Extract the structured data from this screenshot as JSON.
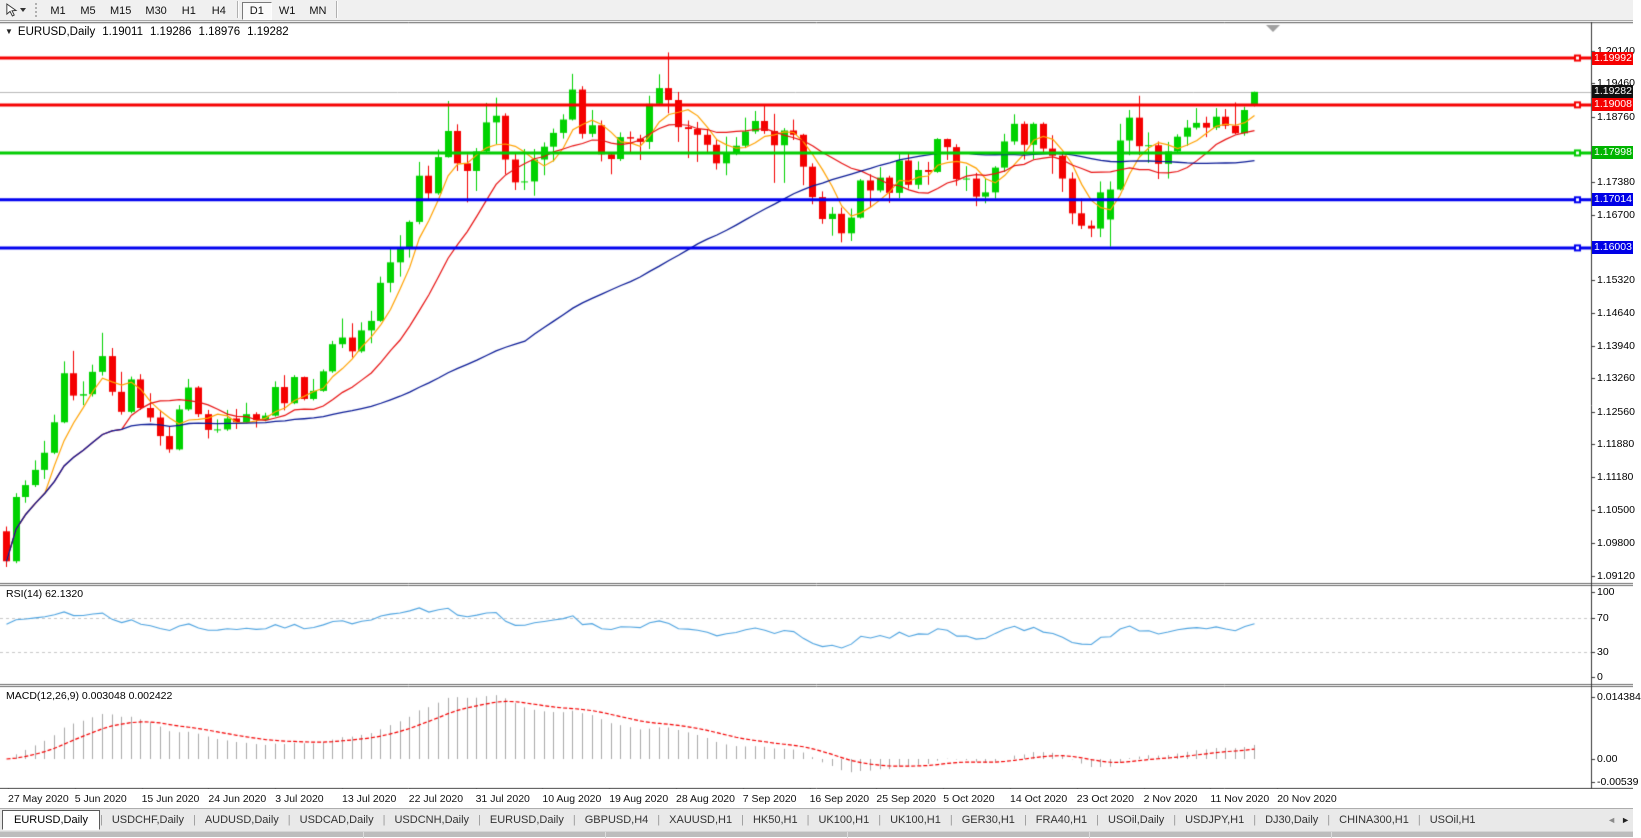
{
  "toolbar": {
    "timeframes": [
      "M1",
      "M5",
      "M15",
      "M30",
      "H1",
      "H4",
      "D1",
      "W1",
      "MN"
    ],
    "active_timeframe": "D1"
  },
  "icons": {
    "chart_dropdown": "▼",
    "tab_scroll_left": "◄",
    "tab_scroll_right": "►"
  },
  "tabs": {
    "active_index": 0,
    "items": [
      "EURUSD,Daily",
      "USDCHF,Daily",
      "AUDUSD,Daily",
      "USDCAD,Daily",
      "USDCNH,Daily",
      "EURUSD,Daily",
      "GBPUSD,H4",
      "XAUUSD,H1",
      "HK50,H1",
      "UK100,H1",
      "UK100,H1",
      "GER30,H1",
      "FRA40,H1",
      "USOil,Daily",
      "USDJPY,H1",
      "DJ30,Daily",
      "CHINA300,H1",
      "USOil,H1"
    ]
  },
  "chart_data": {
    "type": "candlestick",
    "title": "EURUSD,Daily",
    "ohlc_display": {
      "open": "1.19011",
      "high": "1.19286",
      "low": "1.18976",
      "close": "1.19282"
    },
    "current_price": {
      "value": 1.19282,
      "label": "1.19282"
    },
    "ylim": [
      1.08964,
      1.20707
    ],
    "colors": {
      "bull": "#00d200",
      "bear": "#f40000",
      "ma_fast": "#ffa200",
      "ma_mid": "#e81010",
      "ma_slow": "#0a1a96",
      "price_line": "#b8b8b8"
    },
    "moving_averages": [
      {
        "name": "fast",
        "period": 5,
        "color": "#ffa200"
      },
      {
        "name": "mid",
        "period": 13,
        "color": "#e81010"
      },
      {
        "name": "slow",
        "period": 55,
        "color": "#0a1a96"
      }
    ],
    "hlines": [
      {
        "price": 1.19992,
        "color": "#f60000",
        "width": 3
      },
      {
        "price": 1.19008,
        "color": "#f60000",
        "width": 3
      },
      {
        "price": 1.17998,
        "color": "#00cc00",
        "width": 3
      },
      {
        "price": 1.17014,
        "color": "#0000f0",
        "width": 3
      },
      {
        "price": 1.16003,
        "color": "#0000f0",
        "width": 3
      }
    ],
    "axis_badges": [
      {
        "label": "1.19992",
        "value": 1.19992,
        "color": "#f60000"
      },
      {
        "label": "1.19282",
        "value": 1.19282,
        "color": "#101010"
      },
      {
        "label": "1.19008",
        "value": 1.19008,
        "color": "#f60000"
      },
      {
        "label": "1.17998",
        "value": 1.17998,
        "color": "#00b400"
      },
      {
        "label": "1.17014",
        "value": 1.17014,
        "color": "#0000e6"
      },
      {
        "label": "1.16003",
        "value": 1.16003,
        "color": "#0000e6"
      }
    ],
    "price_ticks": [
      "1.20140",
      "1.19460",
      "1.18760",
      "1.17380",
      "1.16700",
      "1.15320",
      "1.14640",
      "1.13940",
      "1.13260",
      "1.12560",
      "1.11880",
      "1.11180",
      "1.10500",
      "1.09800",
      "1.09120"
    ],
    "time_labels": [
      "27 May 2020",
      "5 Jun 2020",
      "15 Jun 2020",
      "24 Jun 2020",
      "3 Jul 2020",
      "13 Jul 2020",
      "22 Jul 2020",
      "31 Jul 2020",
      "10 Aug 2020",
      "19 Aug 2020",
      "28 Aug 2020",
      "7 Sep 2020",
      "16 Sep 2020",
      "25 Sep 2020",
      "5 Oct 2020",
      "14 Oct 2020",
      "23 Oct 2020",
      "2 Nov 2020",
      "11 Nov 2020",
      "20 Nov 2020"
    ],
    "indicators": [
      {
        "name": "RSI",
        "params": "14",
        "label": "RSI(14) 62.1320",
        "value": 62.132,
        "color": "#4da3e0",
        "levels": [
          {
            "label": "100",
            "v": 100
          },
          {
            "label": "70",
            "v": 70,
            "dashed": true
          },
          {
            "label": "30",
            "v": 30,
            "dashed": true
          },
          {
            "label": "0",
            "v": 0
          }
        ]
      },
      {
        "name": "MACD",
        "params": "12,26,9",
        "label": "MACD(12,26,9) 0.003048 0.002422",
        "values": [
          0.003048,
          0.002422
        ],
        "histogram_color": "#a9a9a9",
        "signal_color": "#f40000",
        "ticks": [
          {
            "label": "0.014384",
            "v": 0.014384
          },
          {
            "label": "0.00",
            "v": 0
          },
          {
            "label": "-0.00539",
            "v": -0.00539
          }
        ]
      }
    ],
    "candles": [
      [
        1.1005,
        1.1015,
        1.093,
        1.0942
      ],
      [
        1.0942,
        1.1085,
        1.0938,
        1.1077
      ],
      [
        1.1077,
        1.1112,
        1.1065,
        1.1102
      ],
      [
        1.1102,
        1.1154,
        1.1098,
        1.1134
      ],
      [
        1.1134,
        1.1195,
        1.1115,
        1.117
      ],
      [
        1.117,
        1.125,
        1.1167,
        1.1234
      ],
      [
        1.1234,
        1.1362,
        1.1232,
        1.1337
      ],
      [
        1.1337,
        1.1384,
        1.128,
        1.129
      ],
      [
        1.129,
        1.132,
        1.127,
        1.1293
      ],
      [
        1.1293,
        1.1355,
        1.1288,
        1.134
      ],
      [
        1.134,
        1.1422,
        1.1332,
        1.1373
      ],
      [
        1.1373,
        1.139,
        1.129,
        1.1298
      ],
      [
        1.1298,
        1.134,
        1.125,
        1.1256
      ],
      [
        1.1256,
        1.133,
        1.1253,
        1.1324
      ],
      [
        1.1324,
        1.1335,
        1.126,
        1.1264
      ],
      [
        1.1264,
        1.1295,
        1.1235,
        1.1244
      ],
      [
        1.1244,
        1.126,
        1.1185,
        1.1205
      ],
      [
        1.1205,
        1.1225,
        1.117,
        1.1177
      ],
      [
        1.1177,
        1.127,
        1.1175,
        1.1261
      ],
      [
        1.1261,
        1.1325,
        1.1258,
        1.1307
      ],
      [
        1.1307,
        1.131,
        1.1245,
        1.1251
      ],
      [
        1.1251,
        1.126,
        1.12,
        1.1218
      ],
      [
        1.1218,
        1.124,
        1.1212,
        1.1219
      ],
      [
        1.1219,
        1.126,
        1.1216,
        1.1242
      ],
      [
        1.1242,
        1.1262,
        1.122,
        1.1234
      ],
      [
        1.1234,
        1.1275,
        1.1232,
        1.1251
      ],
      [
        1.1251,
        1.1255,
        1.1223,
        1.1239
      ],
      [
        1.1239,
        1.1254,
        1.1236,
        1.1248
      ],
      [
        1.1248,
        1.132,
        1.1246,
        1.1308
      ],
      [
        1.1308,
        1.1333,
        1.1259,
        1.1274
      ],
      [
        1.1274,
        1.1333,
        1.1272,
        1.1329
      ],
      [
        1.1329,
        1.133,
        1.128,
        1.1283
      ],
      [
        1.1283,
        1.1325,
        1.128,
        1.13
      ],
      [
        1.13,
        1.1345,
        1.1298,
        1.1341
      ],
      [
        1.1341,
        1.1405,
        1.1338,
        1.1398
      ],
      [
        1.1398,
        1.1452,
        1.139,
        1.1412
      ],
      [
        1.1412,
        1.1442,
        1.137,
        1.1383
      ],
      [
        1.1383,
        1.1444,
        1.138,
        1.1427
      ],
      [
        1.1427,
        1.1468,
        1.14,
        1.1447
      ],
      [
        1.1447,
        1.154,
        1.1445,
        1.1527
      ],
      [
        1.1527,
        1.1601,
        1.1507,
        1.157
      ],
      [
        1.157,
        1.1627,
        1.154,
        1.1598
      ],
      [
        1.1598,
        1.1658,
        1.158,
        1.1655
      ],
      [
        1.1655,
        1.1781,
        1.165,
        1.1752
      ],
      [
        1.1752,
        1.1773,
        1.17,
        1.1715
      ],
      [
        1.1715,
        1.1807,
        1.1712,
        1.1791
      ],
      [
        1.1791,
        1.1909,
        1.179,
        1.1846
      ],
      [
        1.1846,
        1.186,
        1.1762,
        1.1778
      ],
      [
        1.1778,
        1.1797,
        1.1696,
        1.1762
      ],
      [
        1.1762,
        1.181,
        1.172,
        1.1803
      ],
      [
        1.1803,
        1.1905,
        1.18,
        1.1864
      ],
      [
        1.1864,
        1.1916,
        1.1818,
        1.1878
      ],
      [
        1.1878,
        1.1883,
        1.1755,
        1.1786
      ],
      [
        1.1786,
        1.18,
        1.1722,
        1.1738
      ],
      [
        1.1738,
        1.1808,
        1.1722,
        1.174
      ],
      [
        1.174,
        1.1808,
        1.171,
        1.1786
      ],
      [
        1.1786,
        1.1822,
        1.1753,
        1.1813
      ],
      [
        1.1813,
        1.1851,
        1.1782,
        1.1842
      ],
      [
        1.1842,
        1.1881,
        1.183,
        1.187
      ],
      [
        1.187,
        1.1966,
        1.1868,
        1.1933
      ],
      [
        1.1933,
        1.194,
        1.183,
        1.184
      ],
      [
        1.184,
        1.189,
        1.1833,
        1.1858
      ],
      [
        1.1858,
        1.1868,
        1.1782,
        1.1797
      ],
      [
        1.1797,
        1.1801,
        1.1755,
        1.1787
      ],
      [
        1.1787,
        1.1843,
        1.1783,
        1.1833
      ],
      [
        1.1833,
        1.1845,
        1.18,
        1.183
      ],
      [
        1.183,
        1.1838,
        1.1785,
        1.1823
      ],
      [
        1.1823,
        1.192,
        1.1808,
        1.1903
      ],
      [
        1.1903,
        1.1965,
        1.19,
        1.1936
      ],
      [
        1.1936,
        1.2011,
        1.1883,
        1.1911
      ],
      [
        1.1911,
        1.1928,
        1.1823,
        1.1854
      ],
      [
        1.1854,
        1.1868,
        1.1789,
        1.185
      ],
      [
        1.185,
        1.1865,
        1.1781,
        1.1838
      ],
      [
        1.1838,
        1.185,
        1.1799,
        1.1817
      ],
      [
        1.1817,
        1.1828,
        1.1765,
        1.1778
      ],
      [
        1.1778,
        1.1834,
        1.1753,
        1.1801
      ],
      [
        1.1801,
        1.1833,
        1.1795,
        1.1815
      ],
      [
        1.1815,
        1.1874,
        1.181,
        1.1845
      ],
      [
        1.1845,
        1.1888,
        1.184,
        1.1867
      ],
      [
        1.1867,
        1.19,
        1.184,
        1.1846
      ],
      [
        1.1846,
        1.1882,
        1.1737,
        1.1816
      ],
      [
        1.1816,
        1.1852,
        1.1737,
        1.1847
      ],
      [
        1.1847,
        1.187,
        1.1827,
        1.1838
      ],
      [
        1.1838,
        1.184,
        1.1732,
        1.1771
      ],
      [
        1.1771,
        1.1778,
        1.1692,
        1.1707
      ],
      [
        1.1707,
        1.1719,
        1.1651,
        1.1661
      ],
      [
        1.1661,
        1.1686,
        1.1626,
        1.1672
      ],
      [
        1.1672,
        1.1685,
        1.1612,
        1.1631
      ],
      [
        1.1631,
        1.1683,
        1.1615,
        1.1664
      ],
      [
        1.1664,
        1.1745,
        1.1662,
        1.1742
      ],
      [
        1.1742,
        1.1755,
        1.1685,
        1.1721
      ],
      [
        1.1721,
        1.177,
        1.1717,
        1.1748
      ],
      [
        1.1748,
        1.1752,
        1.1695,
        1.1716
      ],
      [
        1.1716,
        1.1798,
        1.1705,
        1.1784
      ],
      [
        1.1784,
        1.1798,
        1.1725,
        1.1733
      ],
      [
        1.1733,
        1.1782,
        1.1724,
        1.1764
      ],
      [
        1.1764,
        1.1781,
        1.1733,
        1.176
      ],
      [
        1.176,
        1.1831,
        1.1758,
        1.1829
      ],
      [
        1.1829,
        1.183,
        1.1785,
        1.1812
      ],
      [
        1.1812,
        1.1818,
        1.1731,
        1.1745
      ],
      [
        1.1745,
        1.1772,
        1.172,
        1.1746
      ],
      [
        1.1746,
        1.1758,
        1.1688,
        1.1708
      ],
      [
        1.1708,
        1.1746,
        1.1694,
        1.1717
      ],
      [
        1.1717,
        1.1772,
        1.1704,
        1.1769
      ],
      [
        1.1769,
        1.184,
        1.176,
        1.1824
      ],
      [
        1.1824,
        1.1881,
        1.1817,
        1.1861
      ],
      [
        1.1861,
        1.1866,
        1.1786,
        1.1817
      ],
      [
        1.1817,
        1.1864,
        1.1786,
        1.1861
      ],
      [
        1.1861,
        1.1864,
        1.18,
        1.1809
      ],
      [
        1.1809,
        1.1837,
        1.1756,
        1.1794
      ],
      [
        1.1794,
        1.18,
        1.1718,
        1.1746
      ],
      [
        1.1746,
        1.1759,
        1.165,
        1.1673
      ],
      [
        1.1673,
        1.1704,
        1.164,
        1.1647
      ],
      [
        1.1647,
        1.1658,
        1.1623,
        1.1641
      ],
      [
        1.1641,
        1.174,
        1.1623,
        1.1717
      ],
      [
        1.166,
        1.174,
        1.1603,
        1.1723
      ],
      [
        1.1723,
        1.1861,
        1.1721,
        1.1826
      ],
      [
        1.1826,
        1.189,
        1.1795,
        1.1874
      ],
      [
        1.1874,
        1.192,
        1.1795,
        1.1814
      ],
      [
        1.1814,
        1.1843,
        1.1779,
        1.1816
      ],
      [
        1.1816,
        1.1824,
        1.1745,
        1.1777
      ],
      [
        1.1777,
        1.1823,
        1.1746,
        1.1803
      ],
      [
        1.1803,
        1.1839,
        1.1799,
        1.1834
      ],
      [
        1.1834,
        1.1869,
        1.1815,
        1.1853
      ],
      [
        1.1853,
        1.1894,
        1.1849,
        1.1863
      ],
      [
        1.1863,
        1.1876,
        1.1833,
        1.1853
      ],
      [
        1.1853,
        1.1894,
        1.1848,
        1.1876
      ],
      [
        1.1876,
        1.1892,
        1.185,
        1.1857
      ],
      [
        1.1857,
        1.1906,
        1.1839,
        1.1841
      ],
      [
        1.1841,
        1.1897,
        1.1836,
        1.189
      ],
      [
        1.19011,
        1.19286,
        1.18976,
        1.19282
      ]
    ]
  }
}
